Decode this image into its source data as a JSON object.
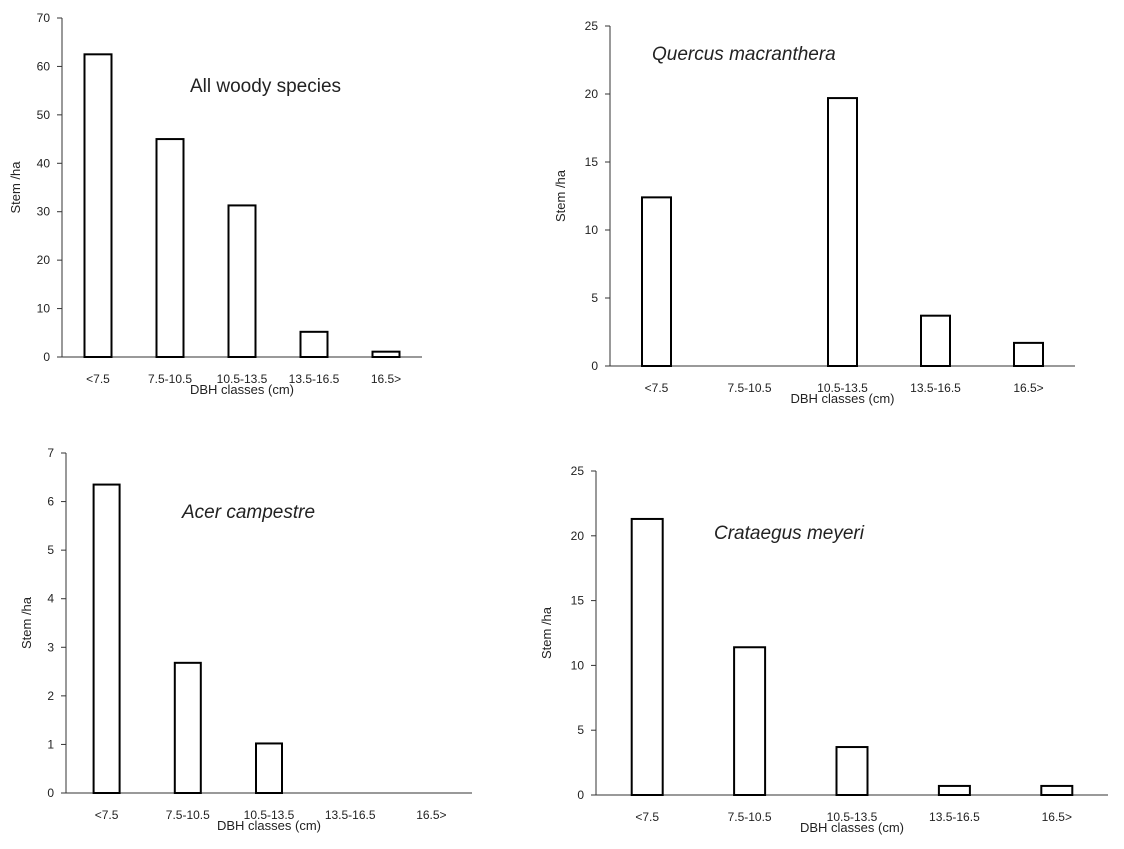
{
  "colors": {
    "bar_fill": "#ffffff",
    "bar_stroke": "#000000",
    "axis": "#333333",
    "text": "#222222"
  },
  "chart_data": [
    {
      "type": "bar",
      "title": "All woody species",
      "title_style": "normal",
      "categories": [
        "<7.5",
        "7.5-10.5",
        "10.5-13.5",
        "13.5-16.5",
        "16.5>"
      ],
      "values": [
        62.5,
        45,
        31.3,
        5.2,
        1.1
      ],
      "xlabel": "DBH classes (cm)",
      "ylabel": "Stem /ha",
      "ylim": [
        0,
        70
      ],
      "yticks": [
        0,
        10,
        20,
        30,
        40,
        50,
        60,
        70
      ],
      "grid": false,
      "legend": "none"
    },
    {
      "type": "bar",
      "title": "Quercus macranthera",
      "title_style": "italic",
      "categories": [
        "<7.5",
        "7.5-10.5",
        "10.5-13.5",
        "13.5-16.5",
        "16.5>"
      ],
      "values": [
        12.4,
        0,
        19.7,
        3.7,
        1.7
      ],
      "xlabel": "DBH classes (cm)",
      "ylabel": "Stem /ha",
      "ylim": [
        0,
        25
      ],
      "yticks": [
        0,
        5,
        10,
        15,
        20,
        25
      ],
      "grid": false,
      "legend": "none"
    },
    {
      "type": "bar",
      "title": "Acer campestre",
      "title_style": "italic",
      "categories": [
        "<7.5",
        "7.5-10.5",
        "10.5-13.5",
        "13.5-16.5",
        "16.5>"
      ],
      "values": [
        6.35,
        2.68,
        1.02,
        0,
        0
      ],
      "xlabel": "DBH classes (cm)",
      "ylabel": "Stem /ha",
      "ylim": [
        0,
        7
      ],
      "yticks": [
        0,
        1,
        2,
        3,
        4,
        5,
        6,
        7
      ],
      "grid": false,
      "legend": "none"
    },
    {
      "type": "bar",
      "title": "Crataegus meyeri",
      "title_style": "italic",
      "categories": [
        "<7.5",
        "7.5-10.5",
        "10.5-13.5",
        "13.5-16.5",
        "16.5>"
      ],
      "values": [
        21.3,
        11.4,
        3.7,
        0.7,
        0.7
      ],
      "xlabel": "DBH classes (cm)",
      "ylabel": "Stem /ha",
      "ylim": [
        0,
        25
      ],
      "yticks": [
        0,
        5,
        10,
        15,
        20,
        25
      ],
      "grid": false,
      "legend": "none"
    }
  ]
}
